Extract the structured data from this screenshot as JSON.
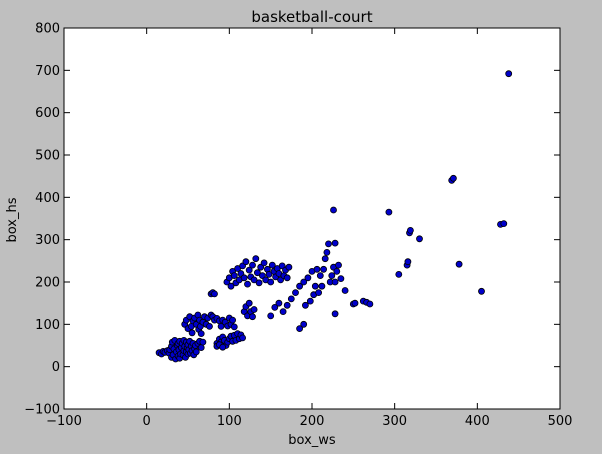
{
  "chart_data": {
    "type": "scatter",
    "title": "basketball-court",
    "xlabel": "box_ws",
    "ylabel": "box_hs",
    "xlim": [
      -100,
      500
    ],
    "ylim": [
      -100,
      800
    ],
    "xticks": [
      -100,
      0,
      100,
      200,
      300,
      400,
      500
    ],
    "yticks": [
      -100,
      0,
      100,
      200,
      300,
      400,
      500,
      600,
      700,
      800
    ],
    "xtick_labels": [
      "−100",
      "0",
      "100",
      "200",
      "300",
      "400",
      "500"
    ],
    "ytick_labels": [
      "−100",
      "0",
      "100",
      "200",
      "300",
      "400",
      "500",
      "600",
      "700",
      "800"
    ],
    "grid": false,
    "colors": {
      "marker_fill": "#0000cc",
      "marker_edge": "#000000",
      "plot_bg": "#ffffff",
      "figure_bg": "#bfbfbf"
    },
    "points": [
      [
        15,
        33
      ],
      [
        18,
        30
      ],
      [
        20,
        36
      ],
      [
        22,
        34
      ],
      [
        25,
        38
      ],
      [
        27,
        32
      ],
      [
        28,
        40
      ],
      [
        30,
        22
      ],
      [
        30,
        48
      ],
      [
        31,
        58
      ],
      [
        32,
        28
      ],
      [
        33,
        42
      ],
      [
        34,
        62
      ],
      [
        35,
        18
      ],
      [
        36,
        35
      ],
      [
        37,
        50
      ],
      [
        38,
        25
      ],
      [
        38,
        55
      ],
      [
        39,
        40
      ],
      [
        40,
        20
      ],
      [
        40,
        60
      ],
      [
        41,
        30
      ],
      [
        42,
        45
      ],
      [
        43,
        55
      ],
      [
        44,
        28
      ],
      [
        45,
        38
      ],
      [
        45,
        62
      ],
      [
        46,
        48
      ],
      [
        47,
        22
      ],
      [
        48,
        35
      ],
      [
        48,
        58
      ],
      [
        49,
        45
      ],
      [
        50,
        30
      ],
      [
        50,
        52
      ],
      [
        51,
        40
      ],
      [
        52,
        60
      ],
      [
        53,
        32
      ],
      [
        54,
        48
      ],
      [
        55,
        38
      ],
      [
        56,
        55
      ],
      [
        57,
        28
      ],
      [
        58,
        42
      ],
      [
        59,
        50
      ],
      [
        60,
        35
      ],
      [
        46,
        100
      ],
      [
        48,
        110
      ],
      [
        50,
        90
      ],
      [
        52,
        118
      ],
      [
        54,
        95
      ],
      [
        55,
        80
      ],
      [
        56,
        108
      ],
      [
        58,
        115
      ],
      [
        60,
        100
      ],
      [
        62,
        122
      ],
      [
        63,
        88
      ],
      [
        64,
        110
      ],
      [
        65,
        95
      ],
      [
        66,
        78
      ],
      [
        68,
        105
      ],
      [
        70,
        118
      ],
      [
        72,
        100
      ],
      [
        74,
        115
      ],
      [
        76,
        95
      ],
      [
        62,
        55
      ],
      [
        64,
        60
      ],
      [
        66,
        45
      ],
      [
        68,
        58
      ],
      [
        78,
        122
      ],
      [
        80,
        118
      ],
      [
        82,
        110
      ],
      [
        85,
        114
      ],
      [
        88,
        108
      ],
      [
        90,
        95
      ],
      [
        92,
        110
      ],
      [
        95,
        105
      ],
      [
        98,
        96
      ],
      [
        100,
        115
      ],
      [
        102,
        100
      ],
      [
        104,
        110
      ],
      [
        106,
        94
      ],
      [
        78,
        172
      ],
      [
        80,
        175
      ],
      [
        82,
        172
      ],
      [
        85,
        55
      ],
      [
        88,
        65
      ],
      [
        90,
        58
      ],
      [
        92,
        70
      ],
      [
        94,
        62
      ],
      [
        96,
        50
      ],
      [
        98,
        58
      ],
      [
        100,
        66
      ],
      [
        102,
        72
      ],
      [
        104,
        60
      ],
      [
        106,
        74
      ],
      [
        108,
        62
      ],
      [
        110,
        78
      ],
      [
        112,
        66
      ],
      [
        114,
        75
      ],
      [
        116,
        68
      ],
      [
        85,
        48
      ],
      [
        88,
        52
      ],
      [
        92,
        46
      ],
      [
        97,
        200
      ],
      [
        100,
        210
      ],
      [
        102,
        190
      ],
      [
        104,
        225
      ],
      [
        106,
        215
      ],
      [
        108,
        198
      ],
      [
        110,
        232
      ],
      [
        112,
        205
      ],
      [
        114,
        220
      ],
      [
        116,
        238
      ],
      [
        118,
        210
      ],
      [
        120,
        248
      ],
      [
        122,
        195
      ],
      [
        124,
        228
      ],
      [
        126,
        212
      ],
      [
        128,
        240
      ],
      [
        130,
        205
      ],
      [
        132,
        255
      ],
      [
        134,
        222
      ],
      [
        136,
        198
      ],
      [
        138,
        235
      ],
      [
        140,
        215
      ],
      [
        142,
        245
      ],
      [
        144,
        205
      ],
      [
        146,
        230
      ],
      [
        148,
        218
      ],
      [
        150,
        200
      ],
      [
        152,
        240
      ],
      [
        154,
        225
      ],
      [
        156,
        212
      ],
      [
        158,
        232
      ],
      [
        160,
        220
      ],
      [
        162,
        205
      ],
      [
        164,
        238
      ],
      [
        166,
        215
      ],
      [
        168,
        228
      ],
      [
        170,
        210
      ],
      [
        172,
        235
      ],
      [
        118,
        130
      ],
      [
        120,
        142
      ],
      [
        122,
        120
      ],
      [
        124,
        150
      ],
      [
        126,
        130
      ],
      [
        128,
        118
      ],
      [
        130,
        135
      ],
      [
        150,
        120
      ],
      [
        155,
        140
      ],
      [
        160,
        150
      ],
      [
        165,
        130
      ],
      [
        170,
        145
      ],
      [
        175,
        160
      ],
      [
        180,
        175
      ],
      [
        185,
        190
      ],
      [
        190,
        200
      ],
      [
        192,
        145
      ],
      [
        195,
        210
      ],
      [
        198,
        155
      ],
      [
        200,
        225
      ],
      [
        202,
        170
      ],
      [
        204,
        190
      ],
      [
        206,
        230
      ],
      [
        208,
        175
      ],
      [
        210,
        215
      ],
      [
        212,
        190
      ],
      [
        214,
        230
      ],
      [
        216,
        255
      ],
      [
        218,
        270
      ],
      [
        220,
        290
      ],
      [
        222,
        200
      ],
      [
        224,
        215
      ],
      [
        226,
        235
      ],
      [
        228,
        200
      ],
      [
        230,
        225
      ],
      [
        232,
        240
      ],
      [
        235,
        208
      ],
      [
        240,
        180
      ],
      [
        185,
        90
      ],
      [
        190,
        100
      ],
      [
        228,
        125
      ],
      [
        226,
        370
      ],
      [
        228,
        292
      ],
      [
        250,
        148
      ],
      [
        252,
        150
      ],
      [
        262,
        155
      ],
      [
        266,
        152
      ],
      [
        270,
        148
      ],
      [
        293,
        365
      ],
      [
        305,
        218
      ],
      [
        315,
        240
      ],
      [
        316,
        248
      ],
      [
        318,
        316
      ],
      [
        319,
        322
      ],
      [
        330,
        302
      ],
      [
        369,
        440
      ],
      [
        371,
        445
      ],
      [
        378,
        242
      ],
      [
        405,
        178
      ],
      [
        428,
        336
      ],
      [
        432,
        338
      ],
      [
        438,
        692
      ]
    ]
  }
}
